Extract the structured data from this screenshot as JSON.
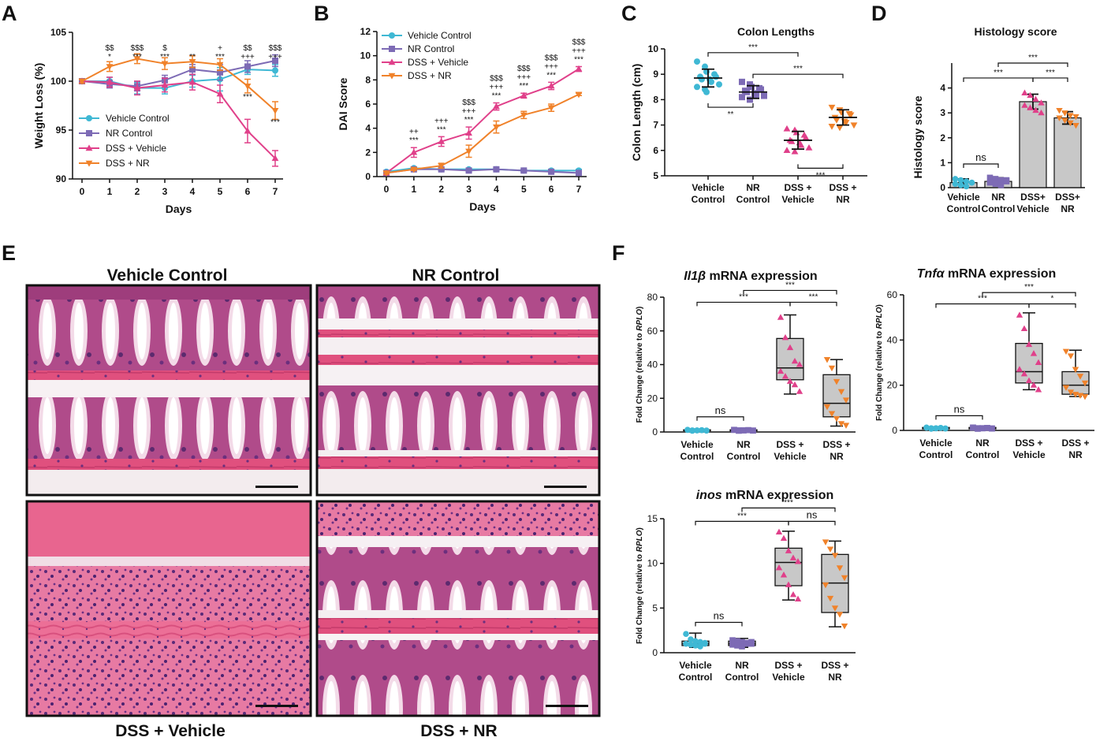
{
  "panel_labels": {
    "A": "A",
    "B": "B",
    "C": "C",
    "D": "D",
    "E": "E",
    "F": "F"
  },
  "colors": {
    "vehicle": "#3fb8d4",
    "nr": "#7d6bb5",
    "dss_vehicle": "#e0408a",
    "dss_nr": "#f0822a",
    "box_fill": "#c8c8c8"
  },
  "chart_data": [
    {
      "id": "A",
      "type": "line",
      "title": "",
      "xlabel": "Days",
      "ylabel": "Weight Loss (%)",
      "x": [
        0,
        1,
        2,
        3,
        4,
        5,
        6,
        7
      ],
      "xlim": [
        0,
        7
      ],
      "ylim": [
        90,
        105
      ],
      "yticks": [
        90,
        95,
        100,
        105
      ],
      "series": [
        {
          "name": "Vehicle Control",
          "key": "vehicle",
          "marker": "circle",
          "values": [
            100,
            100,
            99.3,
            99.3,
            100,
            100.2,
            101.2,
            101.1
          ],
          "err": [
            0.2,
            0.4,
            0.6,
            0.6,
            0.6,
            1.2,
            0.5,
            0.6
          ]
        },
        {
          "name": "NR Control",
          "key": "nr",
          "marker": "square",
          "values": [
            100,
            99.7,
            99.5,
            100.1,
            101.2,
            100.9,
            101.5,
            102.1
          ],
          "err": [
            0.2,
            0.4,
            0.5,
            0.5,
            0.5,
            0.8,
            0.6,
            0.6
          ]
        },
        {
          "name": "DSS + Vehicle",
          "key": "dss_vehicle",
          "marker": "triangle",
          "values": [
            100,
            99.9,
            99.3,
            99.6,
            99.9,
            98.7,
            94.9,
            92.1
          ],
          "err": [
            0.2,
            0.5,
            0.7,
            0.7,
            0.8,
            0.9,
            1.2,
            0.8
          ]
        },
        {
          "name": "DSS + NR",
          "key": "dss_nr",
          "marker": "triangle-down",
          "values": [
            100,
            101.5,
            102.3,
            101.8,
            102.0,
            101.7,
            99.5,
            97.0
          ],
          "err": [
            0.2,
            0.5,
            0.5,
            0.6,
            0.6,
            0.6,
            0.7,
            0.9
          ]
        }
      ],
      "annotations": [
        {
          "x": 1,
          "lines": [
            "$$",
            "*"
          ]
        },
        {
          "x": 2,
          "lines": [
            "$$$",
            "***"
          ]
        },
        {
          "x": 3,
          "lines": [
            "$",
            "***"
          ]
        },
        {
          "x": 4,
          "lines": [
            "**"
          ]
        },
        {
          "x": 5,
          "lines": [
            "+",
            "***"
          ]
        },
        {
          "x": 6,
          "lines": [
            "$$",
            "+++"
          ]
        },
        {
          "x": 7,
          "lines": [
            "$$$",
            "+++"
          ]
        }
      ],
      "annotations_low": [
        {
          "x": 6,
          "text": "***"
        },
        {
          "x": 7,
          "text": "***"
        }
      ]
    },
    {
      "id": "B",
      "type": "line",
      "title": "",
      "xlabel": "Days",
      "ylabel": "DAI Score",
      "x": [
        0,
        1,
        2,
        3,
        4,
        5,
        6,
        7
      ],
      "xlim": [
        0,
        7
      ],
      "ylim": [
        0,
        12
      ],
      "yticks": [
        0,
        2,
        4,
        6,
        8,
        10,
        12
      ],
      "series": [
        {
          "name": "Vehicle Control",
          "key": "vehicle",
          "marker": "circle",
          "values": [
            0.4,
            0.7,
            0.6,
            0.6,
            0.6,
            0.5,
            0.5,
            0.5
          ],
          "err": [
            0.1,
            0.1,
            0.1,
            0.1,
            0.1,
            0.1,
            0.1,
            0.1
          ]
        },
        {
          "name": "NR Control",
          "key": "nr",
          "marker": "square",
          "values": [
            0.3,
            0.6,
            0.6,
            0.5,
            0.6,
            0.5,
            0.4,
            0.3
          ],
          "err": [
            0.1,
            0.1,
            0.1,
            0.1,
            0.1,
            0.1,
            0.1,
            0.1
          ]
        },
        {
          "name": "DSS + Vehicle",
          "key": "dss_vehicle",
          "marker": "triangle",
          "values": [
            0.3,
            2.0,
            2.9,
            3.6,
            5.8,
            6.7,
            7.5,
            8.9
          ],
          "err": [
            0.1,
            0.4,
            0.4,
            0.5,
            0.3,
            0.2,
            0.3,
            0.2
          ]
        },
        {
          "name": "DSS + NR",
          "key": "dss_nr",
          "marker": "triangle-down",
          "values": [
            0.3,
            0.6,
            0.9,
            2.1,
            4.1,
            5.1,
            5.7,
            6.8
          ],
          "err": [
            0.1,
            0.1,
            0.2,
            0.5,
            0.5,
            0.3,
            0.3,
            0.1
          ]
        }
      ],
      "annotations": [
        {
          "x": 1,
          "lines": [
            "++",
            "***"
          ]
        },
        {
          "x": 2,
          "lines": [
            "+++",
            "***"
          ]
        },
        {
          "x": 3,
          "lines": [
            "$$$",
            "+++",
            "***"
          ]
        },
        {
          "x": 4,
          "lines": [
            "$$$",
            "+++",
            "***"
          ]
        },
        {
          "x": 5,
          "lines": [
            "$$$",
            "+++",
            "***"
          ]
        },
        {
          "x": 6,
          "lines": [
            "$$$",
            "+++",
            "***"
          ]
        },
        {
          "x": 7,
          "lines": [
            "$$$",
            "+++",
            "***"
          ]
        }
      ]
    },
    {
      "id": "C",
      "type": "scatter",
      "title": "Colon Lengths",
      "xlabel": "",
      "ylabel": "Colon Length (cm)",
      "categories": [
        "Vehicle Control",
        "NR Control",
        "DSS + Vehicle",
        "DSS + NR"
      ],
      "ylim": [
        5,
        10
      ],
      "yticks": [
        5,
        6,
        7,
        8,
        9,
        10
      ],
      "groups": [
        {
          "key": "vehicle",
          "marker": "circle",
          "points": [
            9.5,
            9.3,
            9.1,
            9.0,
            8.9,
            8.9,
            8.8,
            8.8,
            8.7,
            8.6,
            8.5,
            8.4,
            8.3
          ],
          "mean": 8.85,
          "sd": 0.35
        },
        {
          "key": "nr",
          "marker": "square",
          "points": [
            8.7,
            8.6,
            8.5,
            8.45,
            8.4,
            8.35,
            8.3,
            8.25,
            8.2,
            8.15,
            8.1,
            8.0
          ],
          "mean": 8.3,
          "sd": 0.25
        },
        {
          "key": "dss_vehicle",
          "marker": "triangle",
          "points": [
            6.85,
            6.8,
            6.7,
            6.6,
            6.5,
            6.4,
            6.35,
            6.3,
            6.2,
            6.1,
            6.0,
            5.95
          ],
          "mean": 6.4,
          "sd": 0.35
        },
        {
          "key": "dss_nr",
          "marker": "triangle-down",
          "points": [
            7.7,
            7.6,
            7.5,
            7.45,
            7.4,
            7.3,
            7.2,
            7.15,
            7.1,
            7.0,
            6.95,
            6.9
          ],
          "mean": 7.3,
          "sd": 0.3
        }
      ],
      "brackets": [
        {
          "from": 0,
          "to": 2,
          "y": 9.85,
          "label": "***"
        },
        {
          "from": 1,
          "to": 3,
          "y": 9.0,
          "label": "***"
        },
        {
          "from": 0,
          "to": 1,
          "y": 7.7,
          "label": "**",
          "down": true
        },
        {
          "from": 2,
          "to": 3,
          "y": 5.3,
          "label": "***",
          "down": true
        }
      ]
    },
    {
      "id": "D",
      "type": "bar",
      "title": "Histology score",
      "xlabel": "",
      "ylabel": "Histology score",
      "categories": [
        "Vehicle Control",
        "NR Control",
        "DSS+ Vehicle",
        "DSS+ NR"
      ],
      "ylim": [
        0,
        5
      ],
      "yticks": [
        0,
        1,
        2,
        3,
        4
      ],
      "values": [
        0.2,
        0.25,
        3.45,
        2.8
      ],
      "err": [
        0.15,
        0.15,
        0.3,
        0.25
      ],
      "groups": [
        {
          "key": "vehicle",
          "marker": "circle",
          "points": [
            0.35,
            0.3,
            0.25,
            0.2,
            0.15,
            0.1,
            0.05,
            0.2
          ]
        },
        {
          "key": "nr",
          "marker": "square",
          "points": [
            0.4,
            0.35,
            0.3,
            0.25,
            0.2,
            0.15,
            0.1,
            0.3
          ]
        },
        {
          "key": "dss_vehicle",
          "marker": "triangle",
          "points": [
            3.8,
            3.7,
            3.55,
            3.4,
            3.3,
            3.2,
            3.1,
            3.0
          ]
        },
        {
          "key": "dss_nr",
          "marker": "triangle-down",
          "points": [
            3.1,
            3.0,
            2.9,
            2.85,
            2.8,
            2.7,
            2.6,
            2.5
          ]
        }
      ],
      "brackets": [
        {
          "from": 0,
          "to": 1,
          "y": 0.95,
          "label": "ns"
        },
        {
          "from": 0,
          "to": 2,
          "y": 4.4,
          "label": "***"
        },
        {
          "from": 1,
          "to": 3,
          "y": 5.0,
          "label": "***"
        },
        {
          "from": 2,
          "to": 3,
          "y": 4.4,
          "label": "***"
        }
      ]
    },
    {
      "id": "F1",
      "type": "box",
      "title_italic": "Il1β",
      "title_rest": " mRNA expression",
      "xlabel": "",
      "ylabel_pre": "Fold Change (relative to ",
      "ylabel_it": "RPLO",
      "ylabel_post": ")",
      "categories": [
        "Vehicle Control",
        "NR Control",
        "DSS + Vehicle",
        "DSS + NR"
      ],
      "ylim": [
        0,
        80
      ],
      "yticks": [
        0,
        20,
        40,
        60,
        80
      ],
      "boxes": [
        {
          "key": "vehicle",
          "min": 0.5,
          "q1": 0.7,
          "median": 1.0,
          "q3": 1.3,
          "max": 1.6,
          "points": [
            1.2,
            1.0,
            0.9,
            1.1,
            0.8,
            1.3,
            0.7,
            1.0,
            1.1,
            0.9
          ]
        },
        {
          "key": "nr",
          "min": 0.5,
          "q1": 0.7,
          "median": 1.0,
          "q3": 1.3,
          "max": 1.6,
          "points": [
            1.2,
            1.0,
            0.9,
            1.1,
            0.8,
            1.3,
            0.7,
            1.0,
            1.1,
            0.9
          ]
        },
        {
          "key": "dss_vehicle",
          "min": 22.5,
          "q1": 31,
          "median": 38,
          "q3": 55.5,
          "max": 69.5,
          "points": [
            68,
            56,
            50,
            42,
            40,
            36,
            33,
            30,
            28,
            24
          ]
        },
        {
          "key": "dss_nr",
          "min": 3.5,
          "q1": 9,
          "median": 17,
          "q3": 34,
          "max": 43,
          "points": [
            43,
            38,
            30,
            24,
            19,
            15,
            11,
            8,
            5,
            4
          ]
        }
      ],
      "brackets": [
        {
          "from": 0,
          "to": 1,
          "y": 9,
          "label": "ns"
        },
        {
          "from": 0,
          "to": 2,
          "y": 77,
          "label": "***"
        },
        {
          "from": 1,
          "to": 3,
          "y": 84,
          "label": "***"
        },
        {
          "from": 2,
          "to": 3,
          "y": 77,
          "label": "***"
        }
      ]
    },
    {
      "id": "F2",
      "type": "box",
      "title_italic": "Tnfα",
      "title_rest": " mRNA expression",
      "xlabel": "",
      "ylabel_pre": "Fold Change (relative to ",
      "ylabel_it": "RPLO",
      "ylabel_post": ")",
      "categories": [
        "Vehicle Control",
        "NR Control",
        "DSS + Vehicle",
        "DSS + NR"
      ],
      "ylim": [
        0,
        60
      ],
      "yticks": [
        0,
        20,
        40,
        60
      ],
      "boxes": [
        {
          "key": "vehicle",
          "min": 0.5,
          "q1": 0.7,
          "median": 1.0,
          "q3": 1.3,
          "max": 1.6,
          "points": [
            1.2,
            1.0,
            0.9,
            1.1,
            0.8,
            1.3,
            0.7,
            1.0,
            1.1,
            0.9
          ]
        },
        {
          "key": "nr",
          "min": 0.5,
          "q1": 0.7,
          "median": 1.0,
          "q3": 1.3,
          "max": 1.6,
          "points": [
            1.2,
            1.0,
            0.9,
            1.1,
            0.8,
            1.3,
            0.7,
            1.0,
            1.1,
            0.9
          ]
        },
        {
          "key": "dss_vehicle",
          "min": 18,
          "q1": 21,
          "median": 26,
          "q3": 38.5,
          "max": 52,
          "points": [
            51,
            45,
            38,
            34,
            30,
            27,
            25,
            22,
            20,
            18
          ]
        },
        {
          "key": "dss_nr",
          "min": 15,
          "q1": 16,
          "median": 20,
          "q3": 26,
          "max": 35.5,
          "points": [
            35,
            33,
            27,
            24,
            21,
            19,
            17,
            16,
            15.5,
            15
          ]
        }
      ],
      "brackets": [
        {
          "from": 0,
          "to": 1,
          "y": 6.5,
          "label": "ns"
        },
        {
          "from": 0,
          "to": 2,
          "y": 56,
          "label": "***"
        },
        {
          "from": 1,
          "to": 3,
          "y": 61,
          "label": "***"
        },
        {
          "from": 2,
          "to": 3,
          "y": 56,
          "label": "*"
        }
      ]
    },
    {
      "id": "F3",
      "type": "box",
      "title_italic": "inos",
      "title_rest": " mRNA expression",
      "xlabel": "",
      "ylabel_pre": "Fold Change (relative to ",
      "ylabel_it": "RPLO",
      "ylabel_post": ")",
      "categories": [
        "Vehicle Control",
        "NR Control",
        "DSS + Vehicle",
        "DSS + NR"
      ],
      "ylim": [
        0,
        15
      ],
      "yticks": [
        0,
        5,
        10,
        15
      ],
      "boxes": [
        {
          "key": "vehicle",
          "min": 0.6,
          "q1": 0.8,
          "median": 1.0,
          "q3": 1.3,
          "max": 2.2,
          "points": [
            2.1,
            1.5,
            1.3,
            1.2,
            1.1,
            1.0,
            0.9,
            0.8,
            0.7,
            1.0
          ]
        },
        {
          "key": "nr",
          "min": 0.6,
          "q1": 0.8,
          "median": 1.0,
          "q3": 1.3,
          "max": 1.6,
          "points": [
            1.4,
            1.3,
            1.2,
            1.1,
            1.0,
            0.9,
            0.8,
            0.7,
            1.0,
            1.2
          ]
        },
        {
          "key": "dss_vehicle",
          "min": 5.9,
          "q1": 7.5,
          "median": 10.1,
          "q3": 11.7,
          "max": 13.6,
          "points": [
            13.5,
            12.8,
            11.4,
            10.6,
            10.2,
            9.5,
            8.7,
            7.6,
            6.5,
            6.0
          ]
        },
        {
          "key": "dss_nr",
          "min": 2.9,
          "q1": 4.5,
          "median": 7.8,
          "q3": 11.0,
          "max": 12.5,
          "points": [
            12.4,
            11.6,
            10.9,
            9.5,
            8.4,
            7.6,
            6.1,
            5.0,
            4.3,
            3.0
          ]
        }
      ],
      "brackets": [
        {
          "from": 0,
          "to": 1,
          "y": 3.4,
          "label": "ns"
        },
        {
          "from": 0,
          "to": 2,
          "y": 14.7,
          "label": "***"
        },
        {
          "from": 1,
          "to": 3,
          "y": 16.2,
          "label": "***"
        },
        {
          "from": 2,
          "to": 3,
          "y": 14.7,
          "label": "ns"
        }
      ]
    }
  ],
  "histology": {
    "vehicle_control": "Vehicle Control",
    "nr_control": "NR Control",
    "dss_vehicle": "DSS + Vehicle",
    "dss_nr": "DSS + NR"
  }
}
